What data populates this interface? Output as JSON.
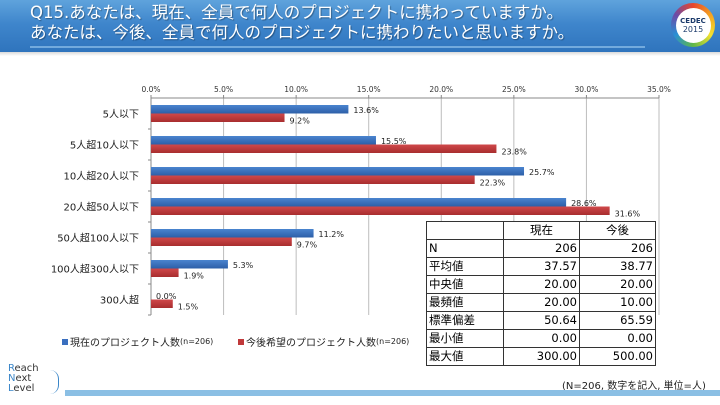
{
  "header": {
    "title_line1": "Q15.あなたは、現在、全員で何人のプロジェクトに携わっていますか。",
    "title_line2": "あなたは、今後、全員で何人のプロジェクトに携わりたいと思いますか。",
    "logo_text1": "CEDEC",
    "logo_text2": "2015"
  },
  "colors": {
    "current": "#3a6fbf",
    "future": "#c0393a",
    "header": "#3f86cc"
  },
  "chart_data": {
    "type": "bar",
    "orientation": "horizontal",
    "title": "",
    "xlabel": "",
    "ylabel": "",
    "xlim": [
      0,
      35
    ],
    "x_ticks": [
      "0.0%",
      "5.0%",
      "10.0%",
      "15.0%",
      "20.0%",
      "25.0%",
      "30.0%",
      "35.0%"
    ],
    "grid": true,
    "legend_position": "bottom",
    "categories": [
      "5人以下",
      "5人超10人以下",
      "10人超20人以下",
      "20人超50人以下",
      "50人超100人以下",
      "100人超300人以下",
      "300人超"
    ],
    "series": [
      {
        "name": "現在のプロジェクト人数",
        "n_label": "(n=206)",
        "color": "#3a6fbf",
        "values": [
          13.6,
          15.5,
          25.7,
          28.6,
          11.2,
          5.3,
          0.0
        ],
        "labels": [
          "13.6%",
          "15.5%",
          "25.7%",
          "28.6%",
          "11.2%",
          "5.3%",
          "0.0%"
        ]
      },
      {
        "name": "今後希望のプロジェクト人数",
        "n_label": "(n=206)",
        "color": "#c0393a",
        "values": [
          9.2,
          23.8,
          22.3,
          31.6,
          9.7,
          1.9,
          1.5
        ],
        "labels": [
          "9.2%",
          "23.8%",
          "22.3%",
          "31.6%",
          "9.7%",
          "1.9%",
          "1.5%"
        ]
      }
    ]
  },
  "stats_table": {
    "headers": [
      "",
      "現在",
      "今後"
    ],
    "rows": [
      [
        "N",
        "206",
        "206"
      ],
      [
        "平均値",
        "37.57",
        "38.77"
      ],
      [
        "中央値",
        "20.00",
        "20.00"
      ],
      [
        "最頻値",
        "20.00",
        "10.00"
      ],
      [
        "標準偏差",
        "50.64",
        "65.59"
      ],
      [
        "最小値",
        "0.00",
        "0.00"
      ],
      [
        "最大値",
        "300.00",
        "500.00"
      ]
    ]
  },
  "note": "(N=206, 数字を記入, 単位=人)",
  "footer": {
    "logo_line1": "Reach",
    "logo_line2": "Next",
    "logo_line3": "Level"
  }
}
